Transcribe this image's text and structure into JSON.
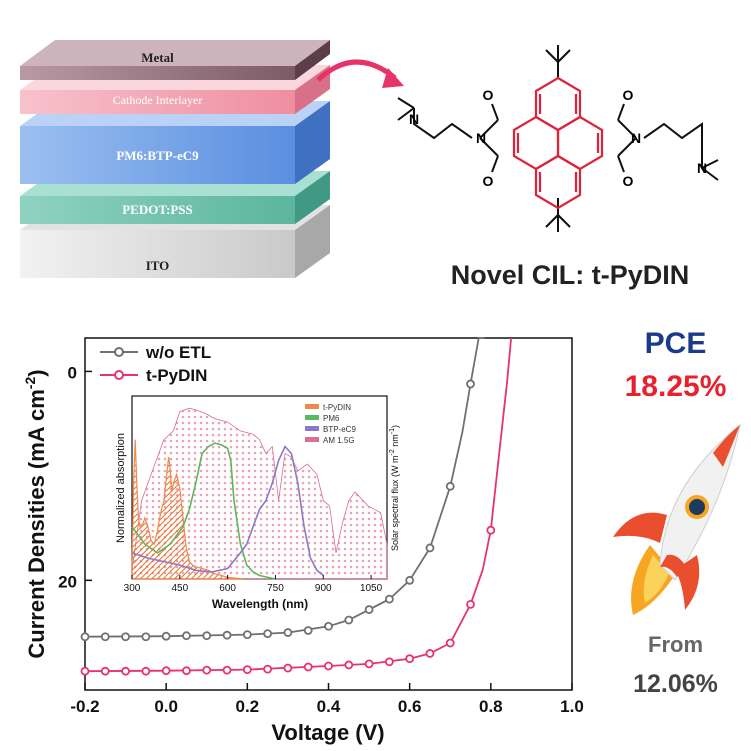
{
  "device_stack": {
    "layers": [
      "Metal",
      "Cathode Interlayer",
      "PM6:BTP-eC9",
      "PEDOT:PSS",
      "ITO"
    ]
  },
  "molecule": {
    "atoms": {
      "N": "N",
      "O": "O"
    },
    "caption": "Novel CIL: t-PyDIN"
  },
  "pce_panel": {
    "title": "PCE",
    "value": "18.25%",
    "from_label": "From",
    "from_value": "12.06%",
    "colors": {
      "value": "#e8212e",
      "title": "#1b3b8a",
      "rocket_red": "#e94f2e",
      "rocket_body": "#f1f1f1",
      "rocket_flame": "#f6a623",
      "window": "#1e3a5f"
    }
  },
  "chart_data": [
    {
      "type": "line",
      "xlabel": "Voltage (V)",
      "ylabel": "Current Densities (mA cm",
      "ylabel_sup": "-2",
      "ylabel_close": ")",
      "xlim": [
        -0.2,
        1.0
      ],
      "ylim": [
        -30.5,
        3.2
      ],
      "y_inverted_display": true,
      "x_ticks": [
        "-0.2",
        "0.0",
        "0.2",
        "0.4",
        "0.6",
        "0.8",
        "1.0"
      ],
      "y_ticks": [
        {
          "value": 0,
          "label": "0"
        },
        {
          "value": -20,
          "label": "20"
        }
      ],
      "legend": "top-left",
      "series": [
        {
          "name": "w/o ETL",
          "color": "#707070",
          "marker_x": [
            -0.2,
            -0.15,
            -0.1,
            -0.05,
            0.0,
            0.05,
            0.1,
            0.15,
            0.2,
            0.25,
            0.3,
            0.35,
            0.4,
            0.45,
            0.5,
            0.55,
            0.6,
            0.65,
            0.7,
            0.75
          ],
          "marker_y": [
            -25.4,
            -25.4,
            -25.4,
            -25.4,
            -25.35,
            -25.3,
            -25.3,
            -25.25,
            -25.2,
            -25.1,
            -25.0,
            -24.8,
            -24.4,
            -23.8,
            -22.8,
            -21.8,
            -20.0,
            -16.9,
            -11.0,
            -1.2
          ],
          "line_x": [
            -0.2,
            0.0,
            0.2,
            0.3,
            0.4,
            0.45,
            0.5,
            0.55,
            0.6,
            0.65,
            0.7,
            0.73,
            0.75,
            0.77,
            0.785
          ],
          "line_y": [
            -25.4,
            -25.35,
            -25.2,
            -25.0,
            -24.4,
            -23.8,
            -22.8,
            -21.8,
            -20.0,
            -16.9,
            -11.0,
            -5.8,
            -1.2,
            3.2,
            3.2
          ]
        },
        {
          "name": "t-PyDIN",
          "color": "#e8336a",
          "marker_x": [
            -0.2,
            -0.15,
            -0.1,
            -0.05,
            0.0,
            0.05,
            0.1,
            0.15,
            0.2,
            0.25,
            0.3,
            0.35,
            0.4,
            0.45,
            0.5,
            0.55,
            0.6,
            0.65,
            0.7,
            0.75,
            0.8
          ],
          "marker_y": [
            -28.7,
            -28.7,
            -28.7,
            -28.7,
            -28.65,
            -28.65,
            -28.6,
            -28.6,
            -28.55,
            -28.5,
            -28.4,
            -28.3,
            -28.2,
            -28.1,
            -28.0,
            -27.8,
            -27.5,
            -27.0,
            -26.0,
            -22.3,
            -15.2
          ],
          "line_x": [
            -0.2,
            0.0,
            0.2,
            0.4,
            0.5,
            0.6,
            0.65,
            0.7,
            0.75,
            0.78,
            0.8,
            0.82,
            0.84,
            0.85
          ],
          "line_y": [
            -28.7,
            -28.65,
            -28.55,
            -28.2,
            -28.0,
            -27.5,
            -27.0,
            -26.0,
            -22.3,
            -19.0,
            -15.2,
            -8.0,
            -1.0,
            3.2
          ]
        }
      ]
    },
    {
      "type": "area",
      "xlabel": "Wavelength (nm)",
      "ylabel": "Normalized absorption",
      "y2label": "Solar spectral flux (W m",
      "y2label_sup": "-2",
      "y2label_unit": " nm",
      "y2label_sup2": "-1",
      "y2label_close": ")",
      "xlim": [
        300,
        1100
      ],
      "ylim": [
        0,
        1.05
      ],
      "x_ticks": [
        "300",
        "450",
        "600",
        "750",
        "900",
        "1050"
      ],
      "legend": "top-right",
      "series": [
        {
          "name": "t-PyDIN",
          "color": "#f08a4b",
          "x": [
            300,
            305,
            310,
            315,
            320,
            325,
            330,
            335,
            340,
            350,
            360,
            370,
            380,
            390,
            400,
            410,
            415,
            420,
            425,
            430,
            440,
            450,
            460,
            470,
            480,
            490,
            500,
            520,
            540,
            560,
            580,
            600,
            650
          ],
          "y": [
            0.05,
            0.55,
            0.8,
            0.55,
            0.35,
            0.3,
            0.3,
            0.32,
            0.35,
            0.3,
            0.22,
            0.2,
            0.28,
            0.38,
            0.45,
            0.62,
            0.7,
            0.62,
            0.5,
            0.55,
            0.6,
            0.52,
            0.35,
            0.18,
            0.1,
            0.08,
            0.07,
            0.06,
            0.05,
            0.03,
            0.02,
            0.01,
            0
          ]
        },
        {
          "name": "PM6",
          "color": "#5cb85c",
          "x": [
            300,
            340,
            380,
            420,
            460,
            480,
            500,
            520,
            540,
            560,
            580,
            600,
            610,
            620,
            640,
            660,
            680,
            700,
            750
          ],
          "y": [
            0.3,
            0.2,
            0.15,
            0.2,
            0.3,
            0.4,
            0.55,
            0.72,
            0.76,
            0.78,
            0.77,
            0.75,
            0.68,
            0.45,
            0.2,
            0.08,
            0.04,
            0.02,
            0
          ]
        },
        {
          "name": "BTP-eC9",
          "color": "#8a78c8",
          "x": [
            300,
            350,
            400,
            450,
            500,
            550,
            600,
            640,
            660,
            680,
            700,
            720,
            740,
            760,
            780,
            800,
            820,
            840,
            860,
            880,
            900
          ],
          "y": [
            0.15,
            0.12,
            0.1,
            0.08,
            0.05,
            0.04,
            0.06,
            0.15,
            0.2,
            0.3,
            0.4,
            0.45,
            0.55,
            0.68,
            0.76,
            0.72,
            0.55,
            0.3,
            0.12,
            0.05,
            0.02
          ]
        },
        {
          "name": "AM 1.5G",
          "color": "#d86f8f",
          "x": [
            300,
            330,
            360,
            400,
            430,
            450,
            480,
            500,
            530,
            560,
            600,
            640,
            680,
            700,
            720,
            740,
            760,
            780,
            800,
            820,
            850,
            880,
            900,
            920,
            940,
            960,
            980,
            1000,
            1020,
            1040,
            1060,
            1080,
            1100
          ],
          "y": [
            0.05,
            0.45,
            0.6,
            0.8,
            0.85,
            0.96,
            0.98,
            0.97,
            0.95,
            0.92,
            0.9,
            0.85,
            0.83,
            0.8,
            0.72,
            0.76,
            0.45,
            0.72,
            0.7,
            0.62,
            0.66,
            0.6,
            0.45,
            0.42,
            0.15,
            0.32,
            0.45,
            0.5,
            0.46,
            0.42,
            0.4,
            0.38,
            0.2
          ]
        }
      ]
    }
  ]
}
